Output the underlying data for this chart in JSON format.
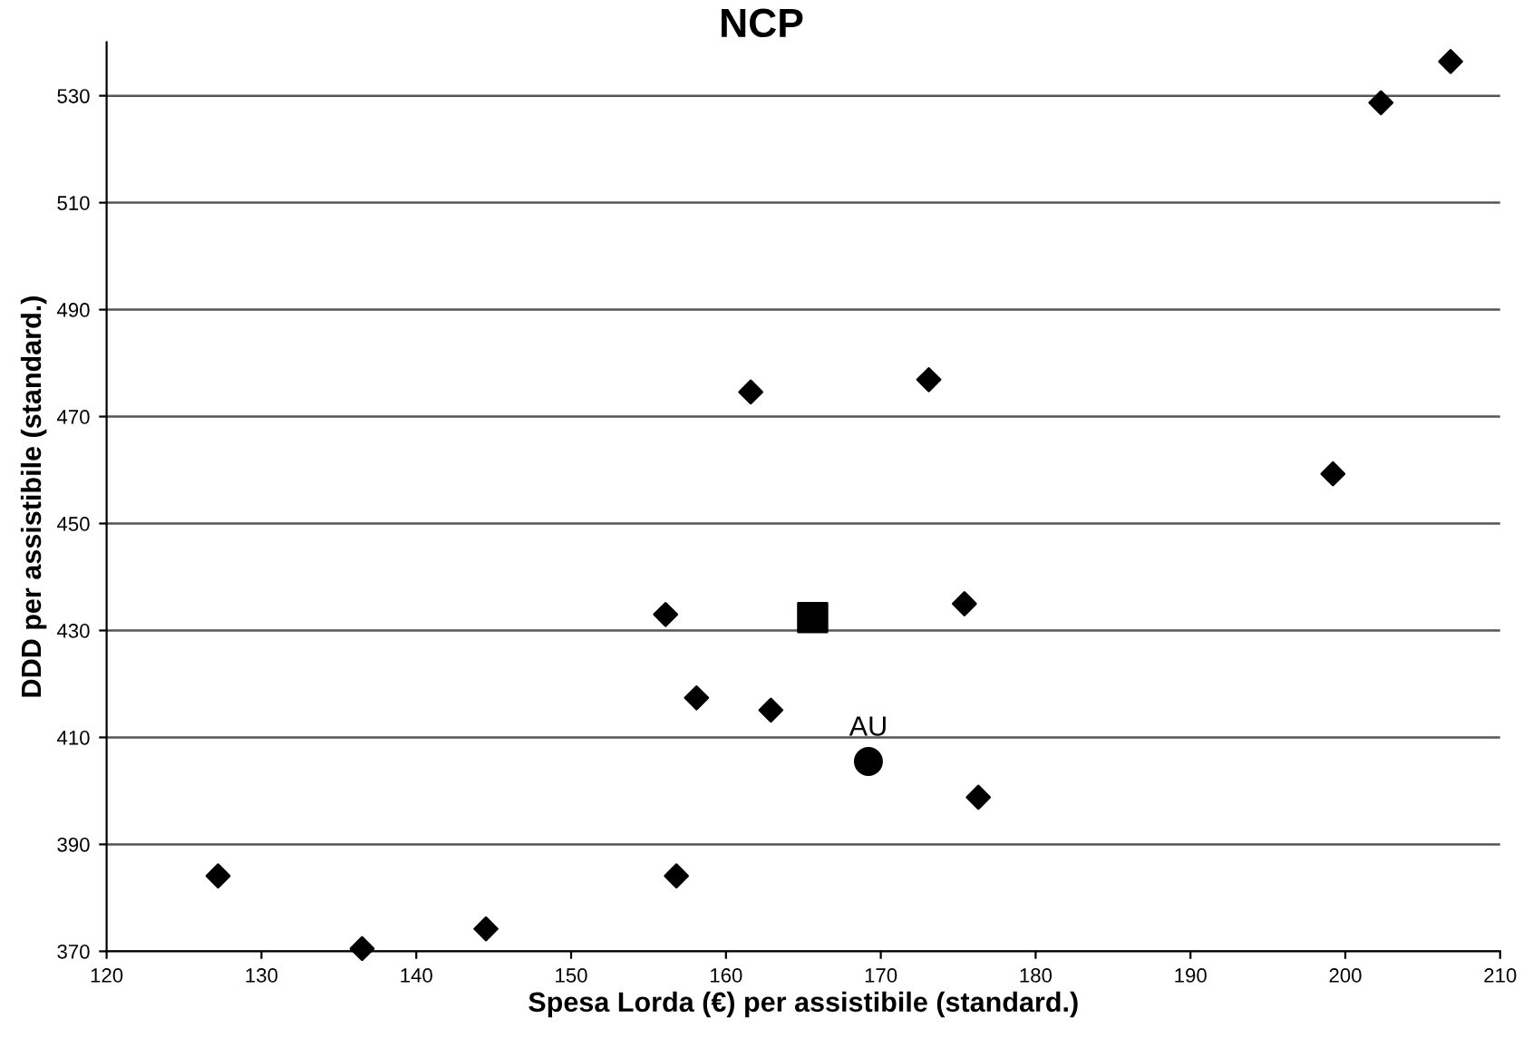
{
  "chart_data": {
    "type": "scatter",
    "xlabel": "Spesa Lorda (€) per assistibile (standard.)",
    "ylabel": "DDD per assistibile (standard.)",
    "annotations": [
      "NCP",
      {
        "text": "AU",
        "x": 169.2,
        "y": 405.5
      }
    ],
    "series": [
      {
        "color": "#000000",
        "marker": "diamond",
        "x": [
          127.2,
          136.5,
          144.5,
          156.8,
          156.1,
          158.1,
          162.9,
          161.6,
          173.1,
          175.4,
          176.3,
          199.2,
          202.3,
          206.8
        ],
        "values": [
          384.1,
          370.5,
          374.2,
          384.1,
          433.0,
          417.4,
          415.1,
          474.6,
          476.9,
          435.0,
          398.8,
          459.3,
          528.7,
          536.4
        ]
      },
      {
        "color": "#000000",
        "marker": "square",
        "x": [
          165.6
        ],
        "values": [
          432.4
        ]
      },
      {
        "color": "#000000",
        "marker": "circle",
        "x": [
          169.2
        ],
        "values": [
          405.5
        ]
      }
    ],
    "xlim": [
      120,
      210
    ],
    "xticks": [
      120,
      130,
      140,
      150,
      160,
      170,
      180,
      190,
      200,
      210
    ],
    "ylim": [
      370,
      540
    ],
    "yticks": [
      370,
      390,
      410,
      430,
      450,
      470,
      490,
      510,
      530
    ],
    "grid": "y"
  }
}
